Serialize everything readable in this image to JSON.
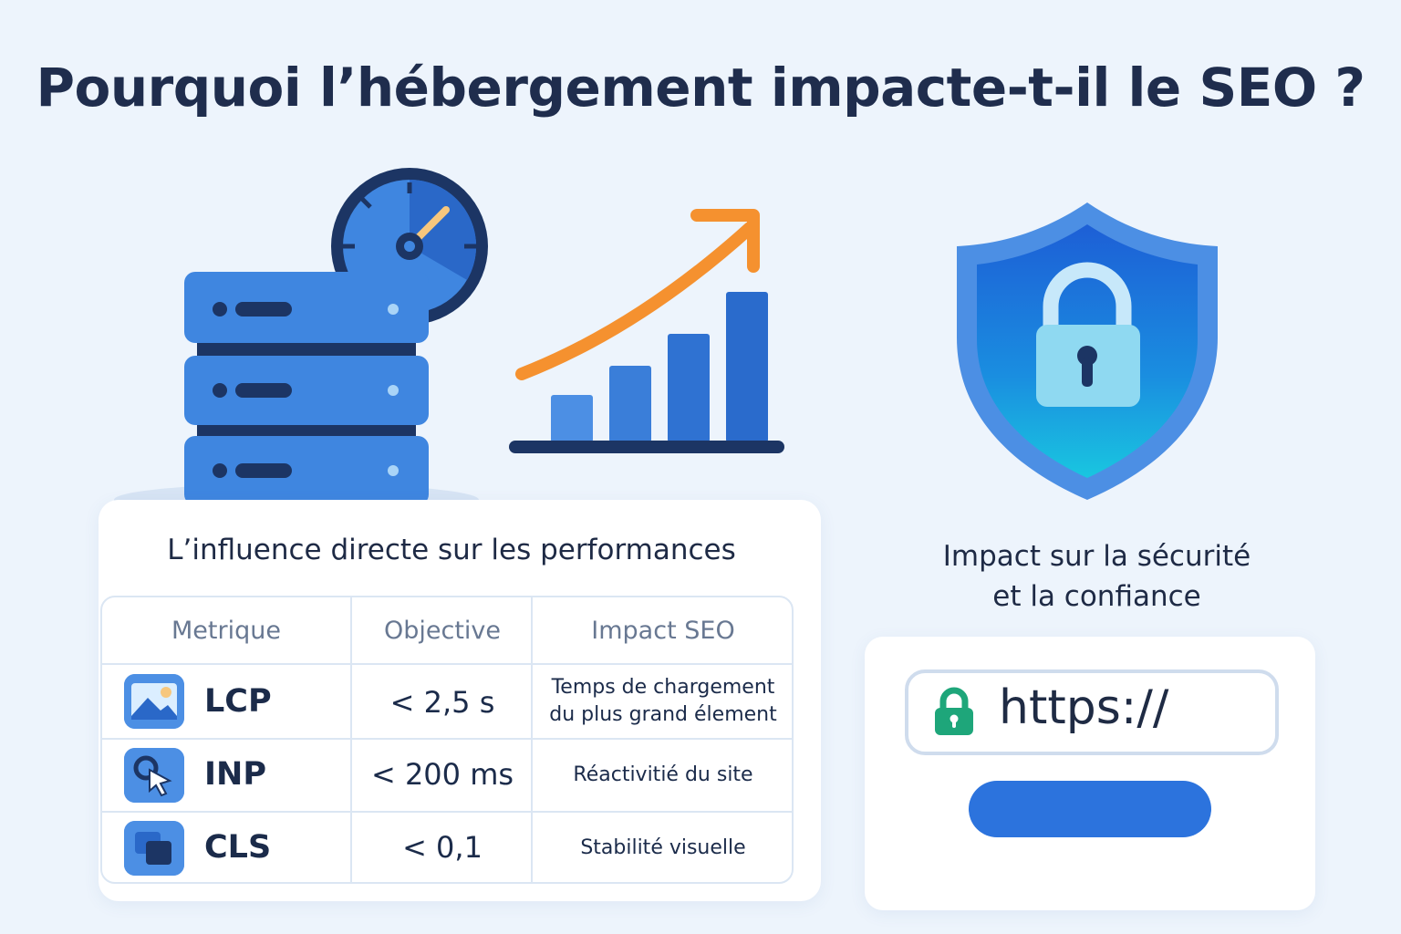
{
  "title": "Pourquoi l’hébergement impacte-t-il le SEO ?",
  "performance": {
    "heading": "L’influence directe sur les performances",
    "columns": [
      "Metrique",
      "Objective",
      "Impact SEO"
    ],
    "rows": [
      {
        "metric": "LCP",
        "target": "< 2,5 s",
        "impact_line1": "Temps de chargement",
        "impact_line2": "du plus grand élement",
        "icon": "image-icon"
      },
      {
        "metric": "INP",
        "target": "< 200 ms",
        "impact_line1": "Réactivitié du site",
        "icon": "cursor-click-icon"
      },
      {
        "metric": "CLS",
        "target": "< 0,1",
        "impact_line1": "Stabilité visuelle",
        "icon": "layers-icon"
      }
    ]
  },
  "security": {
    "heading_line1": "Impact sur la sécurité",
    "heading_line2": "et la confiance",
    "url": "https://"
  },
  "colors": {
    "primary_blue": "#2c73dd",
    "light_blue": "#4c8fe4",
    "navy": "#1c3564",
    "orange": "#f5912f",
    "teal_lock": "#1ea67a",
    "background": "#edf4fc"
  }
}
